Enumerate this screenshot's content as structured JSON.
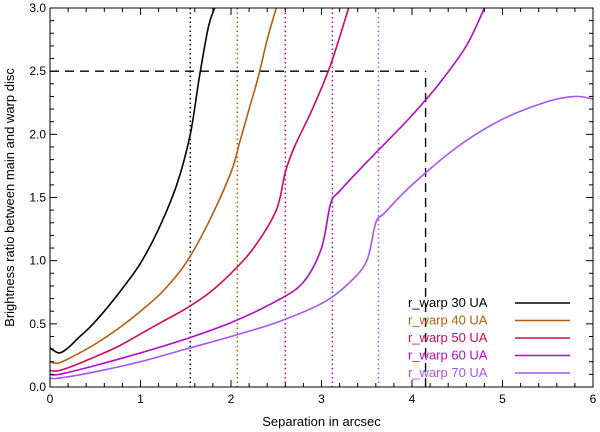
{
  "chart_data": {
    "type": "line",
    "title": "",
    "xlabel": "Separation in arcsec",
    "ylabel": "Brightness ratio between main and warp disc",
    "xlim": [
      0,
      6
    ],
    "ylim": [
      0,
      3.0
    ],
    "x_ticks": [
      0,
      1,
      2,
      3,
      4,
      5,
      6
    ],
    "x_tick_labels": [
      "0",
      "1",
      "2",
      "3",
      "4",
      "5",
      "6"
    ],
    "y_ticks": [
      0.0,
      0.5,
      1.0,
      1.5,
      2.0,
      2.5,
      3.0
    ],
    "y_tick_labels": [
      "0.0",
      "0.5",
      "1.0",
      "1.5",
      "2.0",
      "2.5",
      "3.0"
    ],
    "legend_position": "bottom-right",
    "series": [
      {
        "name": "r_warp 30 UA",
        "color": "#000000",
        "x": [
          0.0,
          0.1,
          0.2,
          0.3,
          0.45,
          0.6,
          0.8,
          1.0,
          1.2,
          1.4,
          1.55,
          1.65,
          1.75,
          1.82
        ],
        "y": [
          0.31,
          0.27,
          0.31,
          0.38,
          0.48,
          0.6,
          0.78,
          0.98,
          1.25,
          1.6,
          2.0,
          2.45,
          2.85,
          3.0
        ]
      },
      {
        "name": "r_warp 40 UA",
        "color": "#b35f0e",
        "x": [
          0.0,
          0.1,
          0.3,
          0.5,
          0.75,
          1.0,
          1.25,
          1.5,
          1.75,
          2.0,
          2.1,
          2.2,
          2.3,
          2.4,
          2.5
        ],
        "y": [
          0.2,
          0.19,
          0.26,
          0.34,
          0.46,
          0.6,
          0.76,
          0.98,
          1.3,
          1.7,
          1.95,
          2.2,
          2.45,
          2.75,
          3.0
        ]
      },
      {
        "name": "r_warp 50 UA",
        "color": "#d0085e",
        "x": [
          0.0,
          0.1,
          0.3,
          0.5,
          0.75,
          1.0,
          1.25,
          1.5,
          1.75,
          2.0,
          2.25,
          2.5,
          2.6,
          2.7,
          2.9,
          3.1,
          3.3
        ],
        "y": [
          0.13,
          0.13,
          0.18,
          0.24,
          0.32,
          0.42,
          0.52,
          0.62,
          0.74,
          0.9,
          1.1,
          1.4,
          1.7,
          1.9,
          2.2,
          2.55,
          3.0
        ]
      },
      {
        "name": "r_warp 60 UA",
        "color": "#b40aca",
        "x": [
          0.0,
          0.1,
          0.5,
          1.0,
          1.5,
          2.0,
          2.5,
          2.8,
          3.0,
          3.1,
          3.2,
          3.5,
          3.8,
          4.0,
          4.3,
          4.6,
          4.8
        ],
        "y": [
          0.1,
          0.1,
          0.17,
          0.27,
          0.38,
          0.51,
          0.68,
          0.83,
          1.1,
          1.45,
          1.55,
          1.78,
          2.0,
          2.15,
          2.4,
          2.7,
          3.0
        ]
      },
      {
        "name": "r_warp 70 UA",
        "color": "#a855f7",
        "x": [
          0.0,
          0.1,
          0.5,
          1.0,
          1.5,
          2.0,
          2.5,
          3.0,
          3.3,
          3.5,
          3.6,
          3.7,
          4.0,
          4.5,
          5.0,
          5.5,
          5.8,
          6.0
        ],
        "y": [
          0.07,
          0.07,
          0.12,
          0.2,
          0.3,
          0.4,
          0.51,
          0.66,
          0.82,
          1.0,
          1.3,
          1.38,
          1.6,
          1.9,
          2.12,
          2.26,
          2.3,
          2.28
        ]
      }
    ],
    "vertical_dotted_lines": [
      {
        "x": 1.55,
        "color": "#000000",
        "series": "r_warp 30 UA"
      },
      {
        "x": 2.07,
        "color": "#b35f0e",
        "series": "r_warp 40 UA"
      },
      {
        "x": 2.6,
        "color": "#d0085e",
        "series": "r_warp 50 UA"
      },
      {
        "x": 3.12,
        "color": "#b40aca",
        "series": "r_warp 60 UA"
      },
      {
        "x": 3.63,
        "color": "#a855f7",
        "series": "r_warp 70 UA"
      }
    ],
    "dashed_guides": [
      {
        "type": "horizontal",
        "y": 2.5,
        "x_from": 0,
        "x_to": 4.15,
        "color": "#000000"
      },
      {
        "type": "vertical",
        "x": 4.15,
        "y_from": 0,
        "y_to": 2.5,
        "color": "#000000"
      }
    ]
  }
}
